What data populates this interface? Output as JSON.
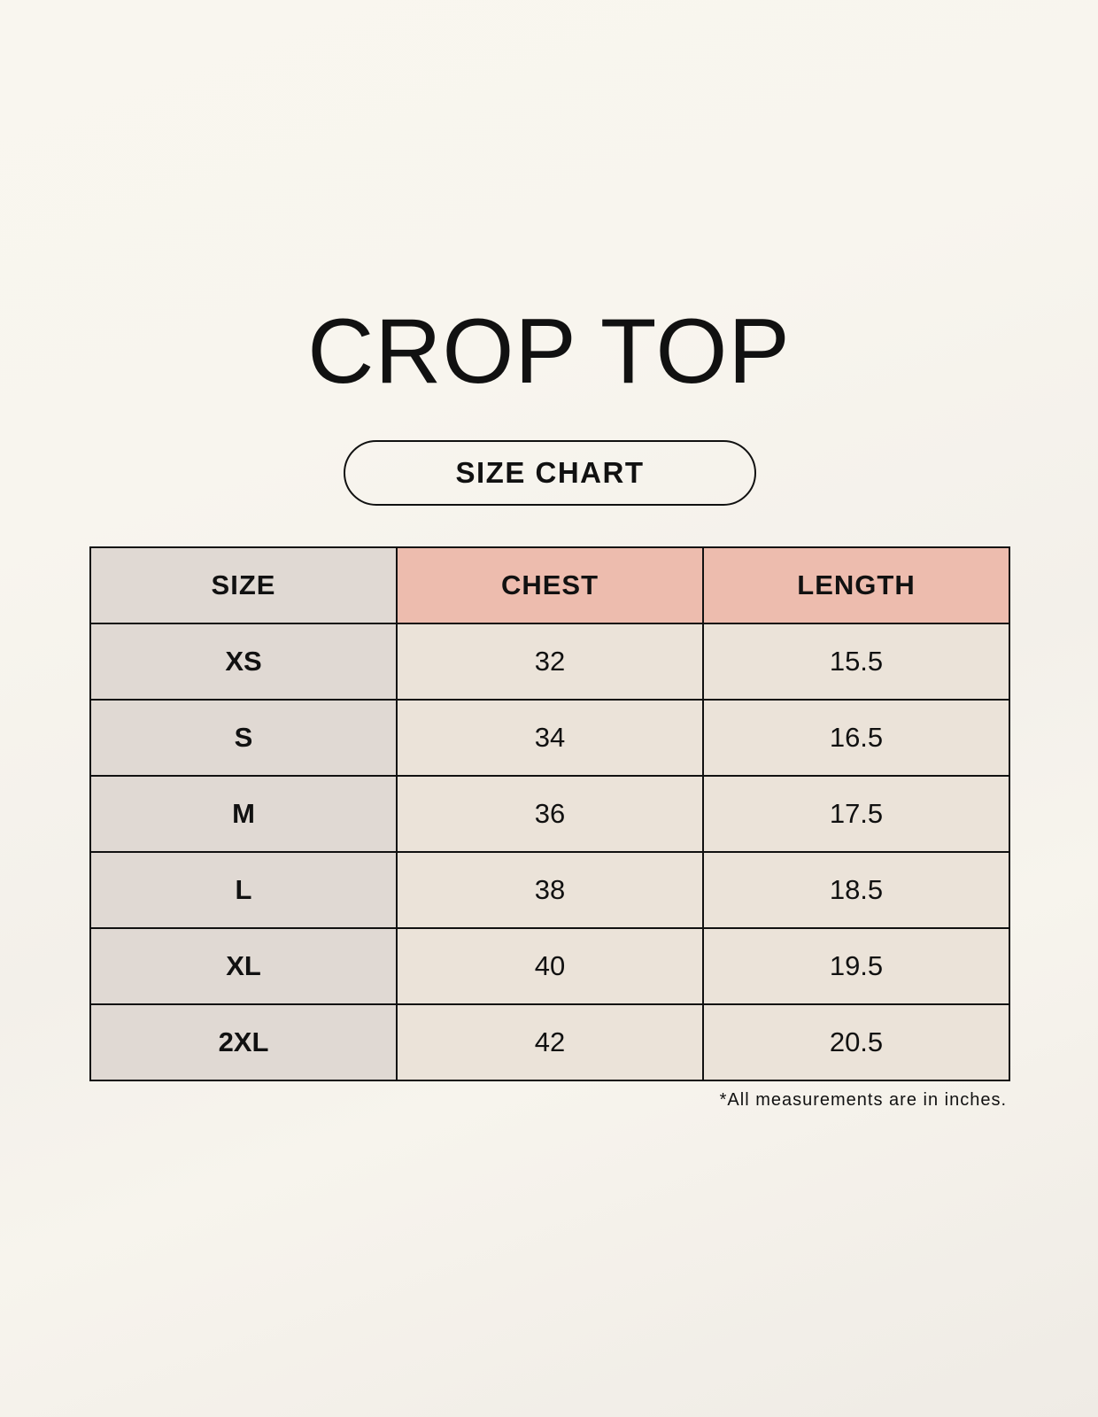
{
  "title": "CROP TOP",
  "subtitle": "SIZE CHART",
  "colors": {
    "size_column": "#e0d9d3",
    "header_accent": "#edbcae",
    "value_cells": "#ebe3d9"
  },
  "table": {
    "headers": [
      "SIZE",
      "CHEST",
      "LENGTH"
    ],
    "rows": [
      [
        "XS",
        "32",
        "15.5"
      ],
      [
        "S",
        "34",
        "16.5"
      ],
      [
        "M",
        "36",
        "17.5"
      ],
      [
        "L",
        "38",
        "18.5"
      ],
      [
        "XL",
        "40",
        "19.5"
      ],
      [
        "2XL",
        "42",
        "20.5"
      ]
    ]
  },
  "footnote": "*All measurements are in inches."
}
